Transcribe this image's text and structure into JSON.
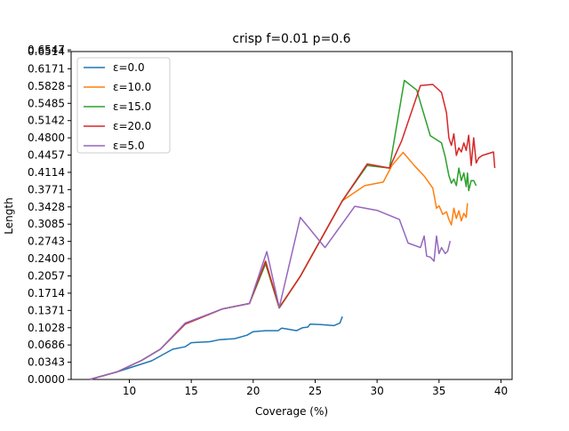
{
  "chart_data": {
    "type": "line",
    "title": "crisp f=0.01 p=0.6",
    "xlabel": "Coverage (%)",
    "ylabel": "Length",
    "xlim": [
      5.3,
      40.9
    ],
    "ylim": [
      0.0,
      0.6514
    ],
    "xticks": [
      10,
      15,
      20,
      25,
      30,
      35,
      40
    ],
    "yticks": [
      "0.0000",
      "0.0343",
      "0.0686",
      "0.1028",
      "0.1371",
      "0.1714",
      "0.2057",
      "0.2400",
      "0.2743",
      "0.3085",
      "0.3428",
      "0.3771",
      "0.4114",
      "0.4457",
      "0.4800",
      "0.5142",
      "0.5485",
      "0.5828",
      "0.6171",
      "0.6514",
      "0.6547"
    ],
    "grid": false,
    "legend_position": "top-left",
    "series": [
      {
        "name": "ε=0.0",
        "color": "#1f77b4",
        "points": [
          [
            6.8,
            0.0
          ],
          [
            9.0,
            0.015
          ],
          [
            11.8,
            0.037
          ],
          [
            13.5,
            0.06
          ],
          [
            14.5,
            0.065
          ],
          [
            15.0,
            0.073
          ],
          [
            16.5,
            0.075
          ],
          [
            17.3,
            0.079
          ],
          [
            18.5,
            0.081
          ],
          [
            19.5,
            0.088
          ],
          [
            20.0,
            0.095
          ],
          [
            21.0,
            0.097
          ],
          [
            22.0,
            0.097
          ],
          [
            22.3,
            0.102
          ],
          [
            22.8,
            0.1
          ],
          [
            23.5,
            0.097
          ],
          [
            24.0,
            0.103
          ],
          [
            24.4,
            0.104
          ],
          [
            24.6,
            0.11
          ],
          [
            25.5,
            0.109
          ],
          [
            26.5,
            0.107
          ],
          [
            27.0,
            0.112
          ],
          [
            27.2,
            0.125
          ]
        ]
      },
      {
        "name": "ε=10.0",
        "color": "#ff7f0e",
        "points": [
          [
            6.8,
            0.0
          ],
          [
            9.0,
            0.015
          ],
          [
            11.0,
            0.038
          ],
          [
            12.5,
            0.06
          ],
          [
            14.5,
            0.11
          ],
          [
            17.5,
            0.14
          ],
          [
            19.7,
            0.151
          ],
          [
            21.0,
            0.23
          ],
          [
            22.1,
            0.142
          ],
          [
            23.8,
            0.205
          ],
          [
            27.2,
            0.355
          ],
          [
            29.0,
            0.385
          ],
          [
            30.5,
            0.392
          ],
          [
            31.2,
            0.425
          ],
          [
            32.1,
            0.451
          ],
          [
            33.0,
            0.425
          ],
          [
            33.8,
            0.404
          ],
          [
            34.5,
            0.38
          ],
          [
            34.8,
            0.34
          ],
          [
            35.0,
            0.345
          ],
          [
            35.3,
            0.328
          ],
          [
            35.6,
            0.333
          ],
          [
            35.8,
            0.318
          ],
          [
            36.0,
            0.307
          ],
          [
            36.2,
            0.34
          ],
          [
            36.4,
            0.32
          ],
          [
            36.6,
            0.335
          ],
          [
            36.8,
            0.315
          ],
          [
            37.0,
            0.33
          ],
          [
            37.2,
            0.322
          ],
          [
            37.3,
            0.35
          ]
        ]
      },
      {
        "name": "ε=15.0",
        "color": "#2ca02c",
        "points": [
          [
            6.8,
            0.0
          ],
          [
            9.0,
            0.015
          ],
          [
            11.0,
            0.038
          ],
          [
            12.5,
            0.06
          ],
          [
            14.5,
            0.11
          ],
          [
            17.5,
            0.14
          ],
          [
            19.7,
            0.151
          ],
          [
            21.0,
            0.23
          ],
          [
            22.1,
            0.142
          ],
          [
            23.8,
            0.205
          ],
          [
            27.2,
            0.355
          ],
          [
            29.2,
            0.425
          ],
          [
            31.0,
            0.42
          ],
          [
            32.2,
            0.594
          ],
          [
            33.2,
            0.575
          ],
          [
            34.3,
            0.484
          ],
          [
            35.2,
            0.47
          ],
          [
            35.5,
            0.442
          ],
          [
            35.8,
            0.405
          ],
          [
            36.0,
            0.39
          ],
          [
            36.2,
            0.398
          ],
          [
            36.4,
            0.385
          ],
          [
            36.6,
            0.42
          ],
          [
            36.8,
            0.395
          ],
          [
            37.0,
            0.41
          ],
          [
            37.2,
            0.383
          ],
          [
            37.3,
            0.41
          ],
          [
            37.4,
            0.375
          ],
          [
            37.6,
            0.395
          ],
          [
            37.8,
            0.395
          ],
          [
            38.0,
            0.385
          ]
        ]
      },
      {
        "name": "ε=20.0",
        "color": "#d62728",
        "points": [
          [
            6.8,
            0.0
          ],
          [
            9.0,
            0.015
          ],
          [
            11.0,
            0.038
          ],
          [
            12.5,
            0.06
          ],
          [
            14.5,
            0.11
          ],
          [
            17.5,
            0.14
          ],
          [
            19.7,
            0.151
          ],
          [
            21.0,
            0.235
          ],
          [
            22.1,
            0.143
          ],
          [
            23.8,
            0.205
          ],
          [
            27.2,
            0.355
          ],
          [
            29.2,
            0.428
          ],
          [
            31.0,
            0.42
          ],
          [
            32.0,
            0.475
          ],
          [
            33.5,
            0.584
          ],
          [
            34.5,
            0.586
          ],
          [
            35.2,
            0.57
          ],
          [
            35.6,
            0.53
          ],
          [
            35.8,
            0.48
          ],
          [
            36.0,
            0.465
          ],
          [
            36.2,
            0.488
          ],
          [
            36.4,
            0.445
          ],
          [
            36.6,
            0.46
          ],
          [
            36.8,
            0.452
          ],
          [
            37.0,
            0.47
          ],
          [
            37.2,
            0.455
          ],
          [
            37.4,
            0.485
          ],
          [
            37.6,
            0.425
          ],
          [
            37.8,
            0.48
          ],
          [
            38.0,
            0.43
          ],
          [
            38.2,
            0.44
          ],
          [
            38.5,
            0.445
          ],
          [
            39.4,
            0.452
          ],
          [
            39.5,
            0.42
          ]
        ]
      },
      {
        "name": "ε=5.0",
        "color": "#9467bd",
        "points": [
          [
            6.8,
            0.0
          ],
          [
            9.0,
            0.015
          ],
          [
            11.0,
            0.038
          ],
          [
            12.5,
            0.06
          ],
          [
            14.5,
            0.112
          ],
          [
            17.5,
            0.14
          ],
          [
            19.7,
            0.151
          ],
          [
            21.1,
            0.254
          ],
          [
            22.1,
            0.143
          ],
          [
            23.8,
            0.322
          ],
          [
            25.8,
            0.262
          ],
          [
            28.2,
            0.344
          ],
          [
            30.0,
            0.336
          ],
          [
            31.8,
            0.318
          ],
          [
            32.5,
            0.271
          ],
          [
            33.5,
            0.262
          ],
          [
            33.8,
            0.285
          ],
          [
            34.0,
            0.245
          ],
          [
            34.3,
            0.243
          ],
          [
            34.6,
            0.235
          ],
          [
            34.8,
            0.285
          ],
          [
            35.0,
            0.25
          ],
          [
            35.2,
            0.262
          ],
          [
            35.5,
            0.25
          ],
          [
            35.7,
            0.255
          ],
          [
            35.9,
            0.275
          ]
        ]
      }
    ]
  }
}
